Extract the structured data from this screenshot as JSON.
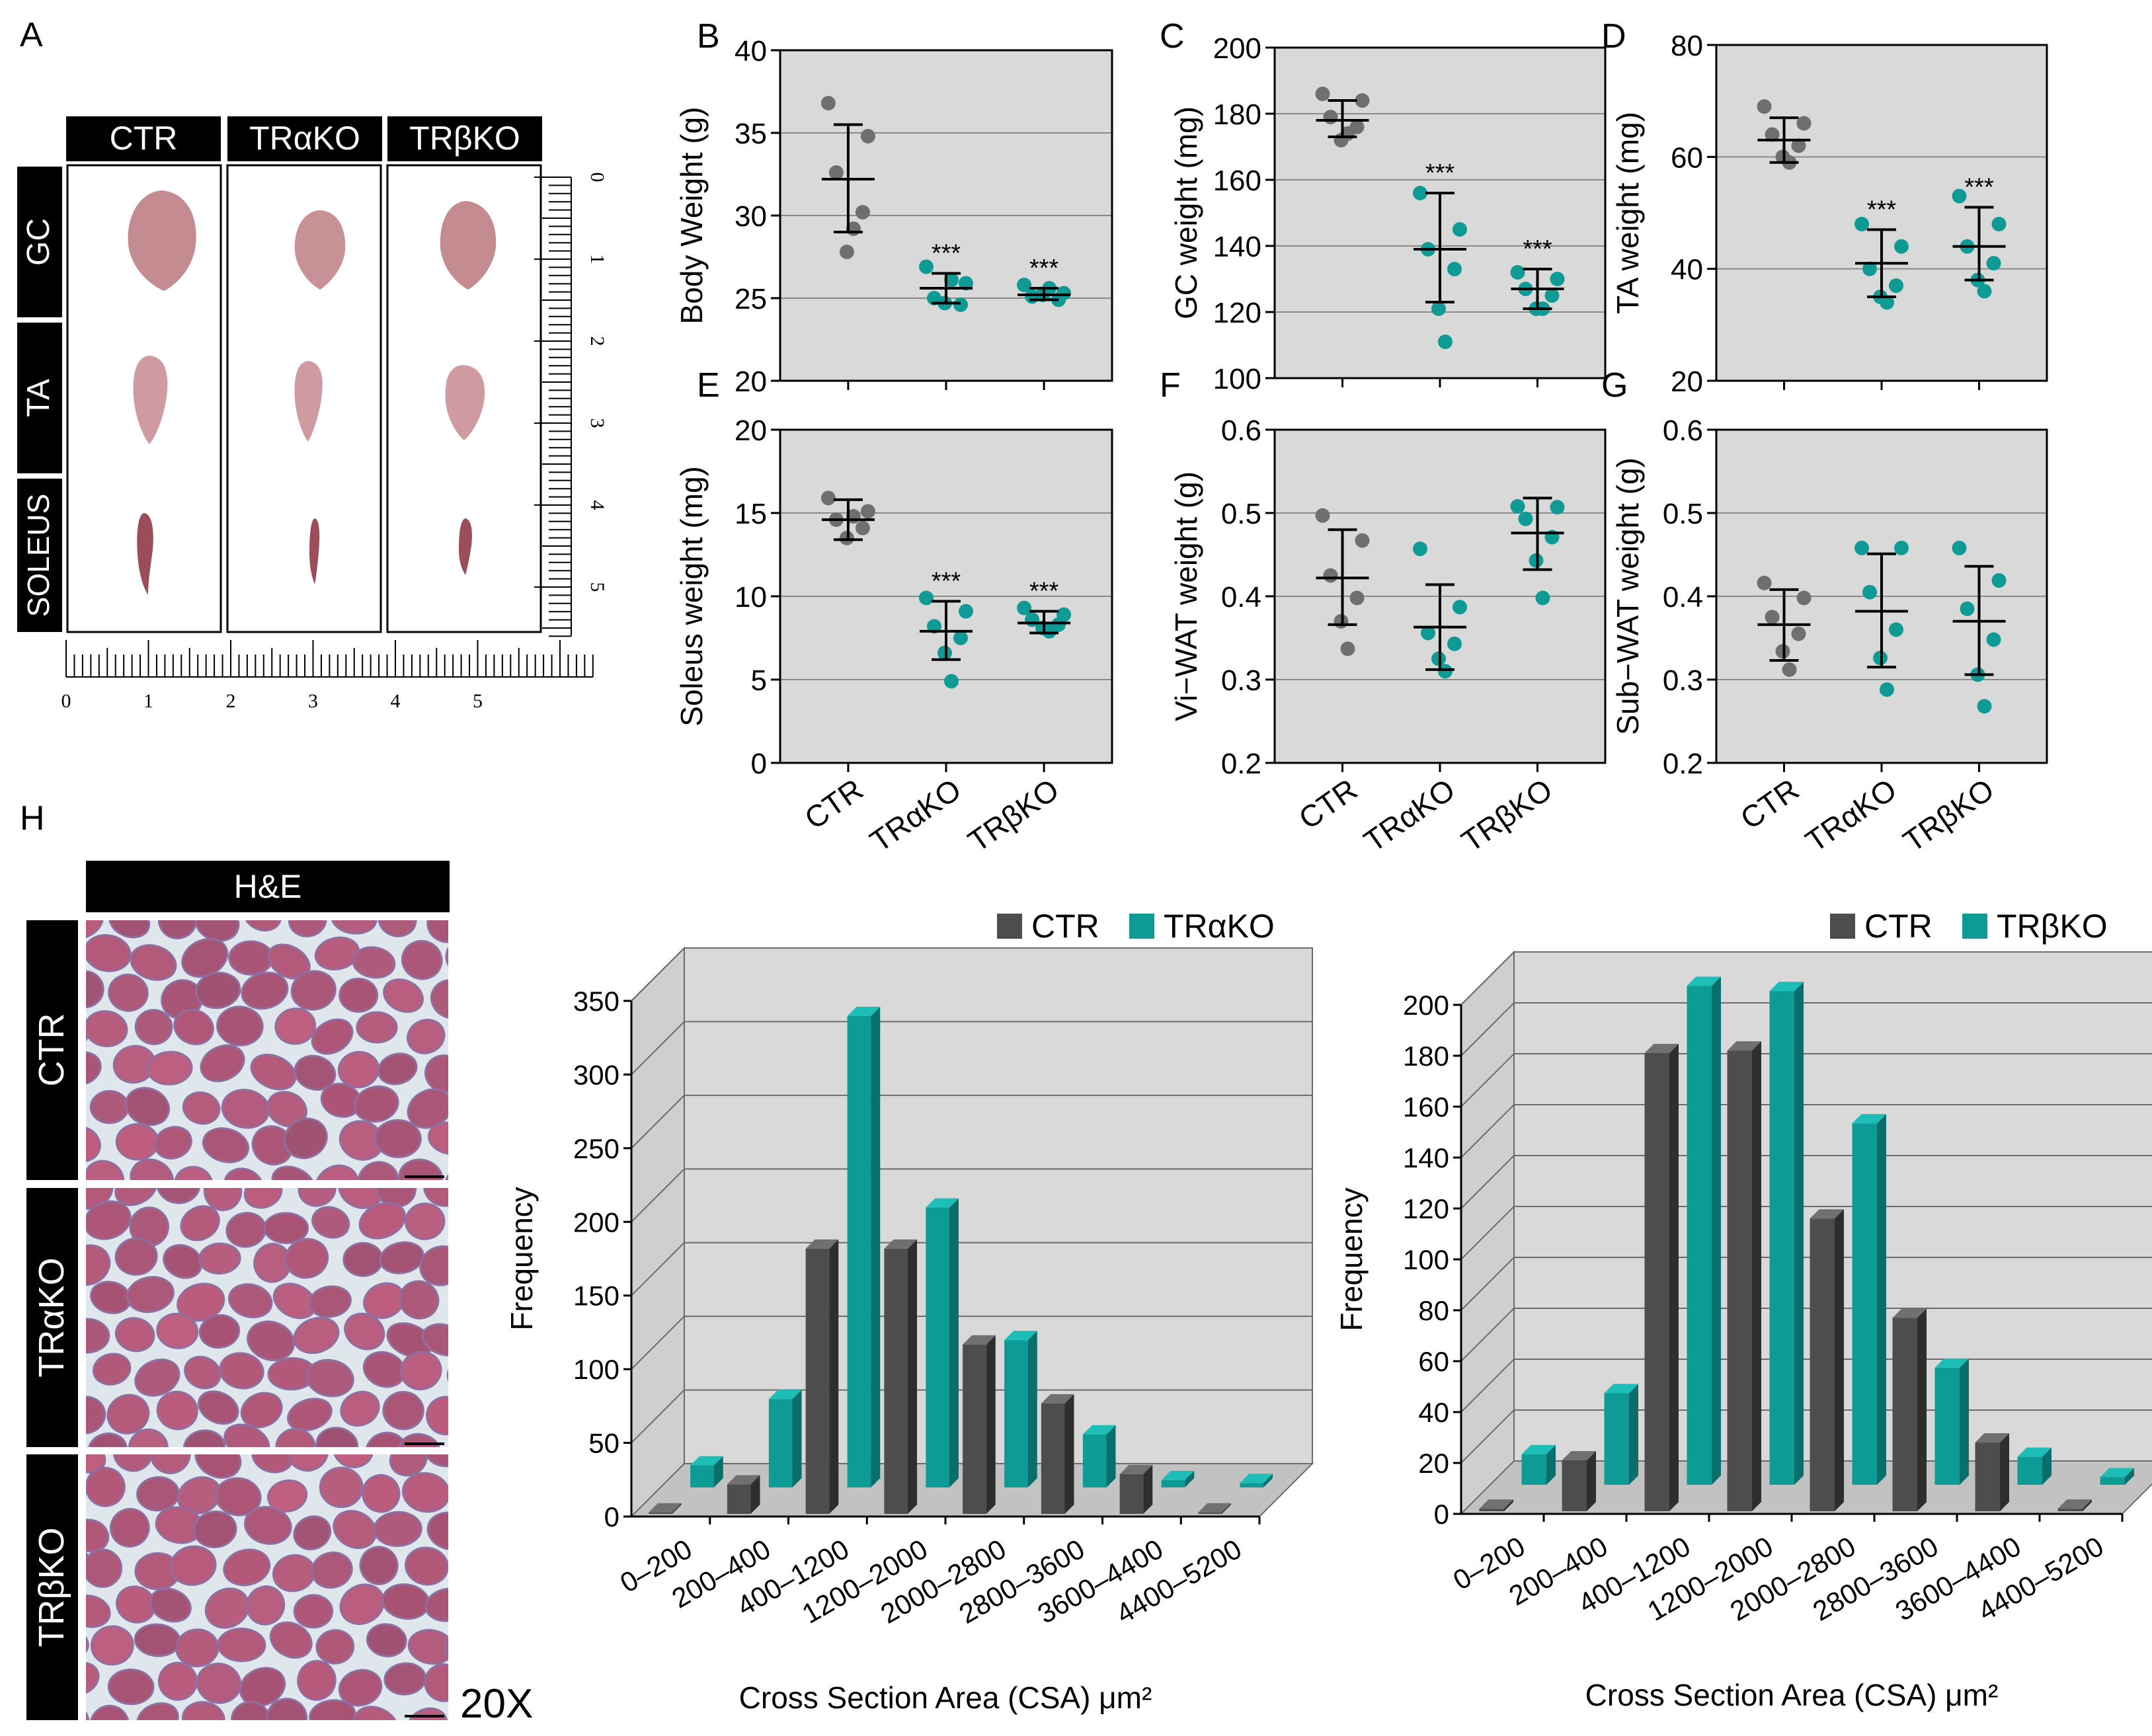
{
  "panel_letters": {
    "a": "A",
    "b": "B",
    "c": "C",
    "d": "D",
    "e": "E",
    "f": "F",
    "g": "G",
    "h": "H"
  },
  "colors": {
    "ctr_dot": "#6f6f6f",
    "ko_dot": "#0f9a96",
    "plot_bg": "#d9d9d9",
    "bar_ctr": "#4d4d4d",
    "bar_ko": "#0e9b96",
    "tissue_base": "#b95f80"
  },
  "photo_panel": {
    "columns": [
      "CTR",
      "TRαKO",
      "TRβKO"
    ],
    "rows": [
      "GC",
      "TA",
      "SOLEUS"
    ],
    "ruler_h_labels": [
      "0",
      "1",
      "2",
      "3",
      "4",
      "5"
    ],
    "ruler_v_labels": [
      "0",
      "1",
      "2",
      "3",
      "4",
      "5"
    ]
  },
  "histology": {
    "header": "H&E",
    "rows": [
      "CTR",
      "TRαKO",
      "TRβKO"
    ],
    "magnification": "20X"
  },
  "chart_data": [
    {
      "id": "B",
      "type": "scatter",
      "ylabel": "Body Weight (g)",
      "ylim": [
        20,
        40
      ],
      "yticks": [
        20,
        25,
        30,
        35,
        40
      ],
      "groups": [
        "CTR",
        "TRαKO",
        "TRβKO"
      ],
      "show_xlabels": false,
      "points": [
        [
          36.8,
          34.8,
          32.6,
          30.2,
          27.8,
          29.2
        ],
        [
          26.9,
          25.9,
          25.0,
          24.6,
          24.7,
          26.1
        ],
        [
          25.8,
          25.3,
          25.1,
          24.9,
          25.2,
          25.6
        ]
      ],
      "mean": [
        32.2,
        25.6,
        25.2
      ],
      "err": [
        [
          29.0,
          35.5
        ],
        [
          24.7,
          26.5
        ],
        [
          24.9,
          25.6
        ]
      ],
      "sig": [
        "",
        "***",
        "***"
      ]
    },
    {
      "id": "C",
      "type": "scatter",
      "ylabel": "GC weight (mg)",
      "ylim": [
        100,
        200
      ],
      "yticks": [
        100,
        120,
        140,
        160,
        180,
        200
      ],
      "groups": [
        "CTR",
        "TRαKO",
        "TRβKO"
      ],
      "show_xlabels": false,
      "points": [
        [
          186,
          184,
          179,
          176,
          172,
          174
        ],
        [
          156,
          145,
          139,
          133,
          121,
          111
        ],
        [
          132,
          130,
          127,
          125,
          121,
          121
        ]
      ],
      "mean": [
        178,
        139,
        127
      ],
      "err": [
        [
          173,
          184
        ],
        [
          123,
          156
        ],
        [
          121,
          133
        ]
      ],
      "sig": [
        "",
        "***",
        "***"
      ]
    },
    {
      "id": "D",
      "type": "scatter",
      "ylabel": "TA weight (mg)",
      "ylim": [
        20,
        80
      ],
      "yticks": [
        20,
        40,
        60,
        80
      ],
      "groups": [
        "CTR",
        "TRαKO",
        "TRβKO"
      ],
      "show_xlabels": false,
      "points": [
        [
          69,
          66,
          64,
          62,
          60,
          59
        ],
        [
          48,
          44,
          40,
          37,
          35,
          34
        ],
        [
          53,
          48,
          44,
          41,
          38,
          36
        ]
      ],
      "mean": [
        63,
        41,
        44
      ],
      "err": [
        [
          59,
          67
        ],
        [
          35,
          47
        ],
        [
          38,
          51
        ]
      ],
      "sig": [
        "",
        "***",
        "***"
      ]
    },
    {
      "id": "E",
      "type": "scatter",
      "ylabel": "Soleus weight (mg)",
      "ylim": [
        0,
        20
      ],
      "yticks": [
        0,
        5,
        10,
        15,
        20
      ],
      "groups": [
        "CTR",
        "TRαKO",
        "TRβKO"
      ],
      "show_xlabels": true,
      "points": [
        [
          15.9,
          15.1,
          14.6,
          14.1,
          13.5,
          14.8
        ],
        [
          9.9,
          9.1,
          8.2,
          7.5,
          6.6,
          4.9
        ],
        [
          9.3,
          8.9,
          8.6,
          8.3,
          8.1,
          7.9
        ]
      ],
      "mean": [
        14.6,
        7.9,
        8.4
      ],
      "err": [
        [
          13.4,
          15.8
        ],
        [
          6.2,
          9.7
        ],
        [
          7.8,
          9.1
        ]
      ],
      "sig": [
        "",
        "***",
        "***"
      ]
    },
    {
      "id": "F",
      "type": "scatter",
      "ylabel": "Vi−WAT weight (g)",
      "ylim": [
        0.2,
        0.6
      ],
      "yticks": [
        0.2,
        0.3,
        0.4,
        0.5,
        0.6
      ],
      "groups": [
        "CTR",
        "TRαKO",
        "TRβKO"
      ],
      "show_xlabels": true,
      "points": [
        [
          0.497,
          0.467,
          0.425,
          0.398,
          0.37,
          0.337
        ],
        [
          0.457,
          0.387,
          0.356,
          0.343,
          0.325,
          0.31
        ],
        [
          0.508,
          0.507,
          0.493,
          0.471,
          0.443,
          0.398
        ]
      ],
      "mean": [
        0.422,
        0.363,
        0.476
      ],
      "err": [
        [
          0.366,
          0.48
        ],
        [
          0.312,
          0.414
        ],
        [
          0.432,
          0.518
        ]
      ],
      "sig": [
        "",
        "",
        ""
      ]
    },
    {
      "id": "G",
      "type": "scatter",
      "ylabel": "Sub−WAT weight (g)",
      "ylim": [
        0.2,
        0.6
      ],
      "yticks": [
        0.2,
        0.3,
        0.4,
        0.5,
        0.6
      ],
      "groups": [
        "CTR",
        "TRαKO",
        "TRβKO"
      ],
      "show_xlabels": true,
      "points": [
        [
          0.416,
          0.398,
          0.375,
          0.355,
          0.334,
          0.312
        ],
        [
          0.458,
          0.458,
          0.405,
          0.36,
          0.326,
          0.288
        ],
        [
          0.458,
          0.419,
          0.385,
          0.348,
          0.306,
          0.268
        ]
      ],
      "mean": [
        0.366,
        0.382,
        0.37
      ],
      "err": [
        [
          0.323,
          0.408
        ],
        [
          0.315,
          0.451
        ],
        [
          0.306,
          0.436
        ]
      ],
      "sig": [
        "",
        "",
        ""
      ]
    },
    {
      "id": "H1",
      "type": "bar",
      "title": "",
      "ylabel": "Frequency",
      "xlabel": "Cross Section Area (CSA) μm²",
      "categories": [
        "0–200",
        "200–400",
        "400–1200",
        "1200–2000",
        "2000–2800",
        "2800–3600",
        "3600–4400",
        "4400–5200"
      ],
      "ylim": [
        0,
        350
      ],
      "yticks": [
        0,
        50,
        100,
        150,
        200,
        250,
        300,
        350
      ],
      "series": [
        {
          "name": "CTR",
          "values": [
            1,
            20,
            180,
            180,
            115,
            75,
            27,
            1
          ]
        },
        {
          "name": "TRαKO",
          "values": [
            15,
            60,
            320,
            190,
            100,
            36,
            5,
            3
          ]
        }
      ]
    },
    {
      "id": "H2",
      "type": "bar",
      "title": "",
      "ylabel": "Frequency",
      "xlabel": "Cross Section Area (CSA) μm²",
      "categories": [
        "0–200",
        "200–400",
        "400–1200",
        "1200–2000",
        "2000–2800",
        "2800–3600",
        "3600–4400",
        "4400–5200"
      ],
      "ylim": [
        0,
        200
      ],
      "yticks": [
        0,
        20,
        40,
        60,
        80,
        100,
        120,
        140,
        160,
        180,
        200
      ],
      "series": [
        {
          "name": "CTR",
          "values": [
            1,
            20,
            180,
            181,
            115,
            76,
            27,
            1
          ]
        },
        {
          "name": "TRβKO",
          "values": [
            12,
            36,
            196,
            194,
            142,
            46,
            11,
            3
          ]
        }
      ]
    }
  ]
}
